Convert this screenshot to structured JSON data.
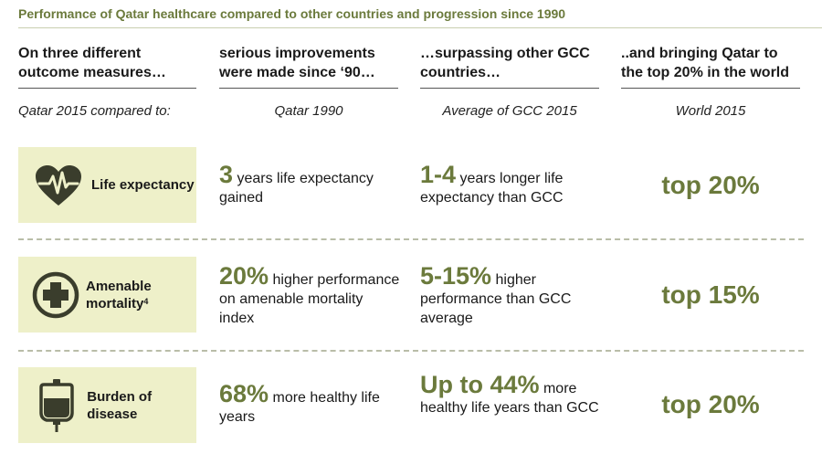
{
  "title": "Performance of Qatar healthcare compared to other countries and progression since 1990",
  "columns": [
    {
      "heading": "On three different outcome measures…",
      "sub": "Qatar 2015 compared to:"
    },
    {
      "heading": "serious improvements were made since ‘90…",
      "sub": "Qatar 1990"
    },
    {
      "heading": "…surpassing other GCC countries…",
      "sub": "Average of GCC 2015"
    },
    {
      "heading": "..and bringing Qatar to the top 20% in the world",
      "sub": "World 2015"
    }
  ],
  "rows": [
    {
      "icon": "heart-pulse-icon",
      "label": "Life expectancy",
      "label_sup": "",
      "vs1990_big": "3",
      "vs1990_text": " years life expectancy gained",
      "vsgcc_big": "1-4",
      "vsgcc_text": " years longer life expectancy than GCC",
      "world": "top 20%"
    },
    {
      "icon": "medical-cross-icon",
      "label": "Amenable mortality",
      "label_sup": "4",
      "vs1990_big": "20%",
      "vs1990_text": " higher performance on amenable mortality index",
      "vsgcc_big": "5-15%",
      "vsgcc_text": " higher performance than GCC average",
      "world": "top 15%"
    },
    {
      "icon": "iv-bag-icon",
      "label": "Burden of disease",
      "label_sup": "",
      "vs1990_big": "68%",
      "vs1990_text": " more healthy life years",
      "vsgcc_big": "Up to 44%",
      "vsgcc_text": " more healthy life years than GCC",
      "world": "top 20%"
    }
  ],
  "colors": {
    "accent": "#6b7a3c",
    "box": "#eef0c9",
    "icon": "#3a3d2c"
  }
}
